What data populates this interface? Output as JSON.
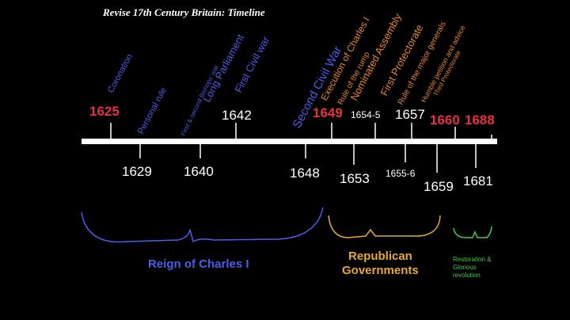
{
  "title": "Revise 17th Century Britain: Timeline",
  "years_above": [
    "1625",
    "1642",
    "1649",
    "1654-5",
    "1657",
    "1660",
    "1688"
  ],
  "years_below": [
    "1629",
    "1640",
    "1648",
    "1653",
    "1655-6",
    "1659",
    "1681"
  ],
  "events": [
    "Coronation",
    "Personal rule",
    "First & second Bishops' war",
    "Long Parliament",
    "First Civil war",
    "Second Civil War",
    "Execution of Charles I",
    "Rule of the rump",
    "Nominated Assembly",
    "First Protectorate",
    "Rule of the major generals",
    "Humble petition and advice",
    "Third Protectorate"
  ],
  "periods": [
    {
      "lines": [
        "Reign of Charles I"
      ]
    },
    {
      "lines": [
        "Republican",
        "Governments"
      ]
    },
    {
      "lines": [
        "Restoration &",
        "Glorious",
        "revolution"
      ]
    }
  ]
}
